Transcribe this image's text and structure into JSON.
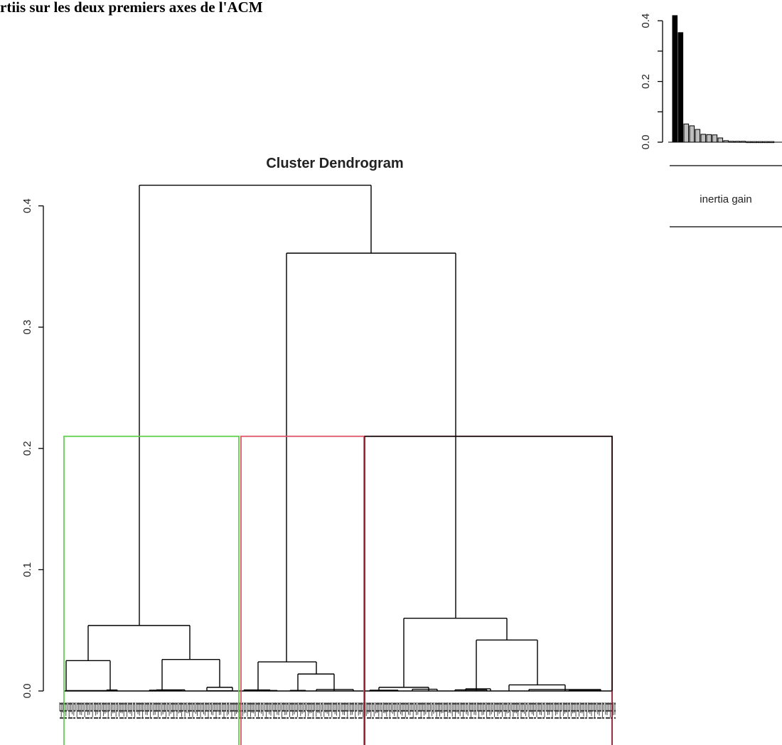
{
  "page_heading": "rtiis sur les deux premiers axes de l'ACM",
  "chart_data": [
    {
      "type": "dendrogram",
      "title": "Cluster Dendrogram",
      "xlabel": "",
      "ylabel": "",
      "ylim": [
        0,
        0.43
      ],
      "y_ticks": [
        "0.0",
        "0.1",
        "0.2",
        "0.3",
        "0.4"
      ],
      "cut_height": 0.21,
      "cluster_colors": [
        "#61D04F",
        "#DF536B",
        "#8B1A2A"
      ],
      "merges": [
        {
          "id": "root",
          "height": 0.417,
          "children": [
            "g",
            "r"
          ]
        },
        {
          "id": "r",
          "height": 0.361,
          "children": [
            "p",
            "q"
          ]
        },
        {
          "id": "g",
          "height": 0.054,
          "children": [
            "g1",
            "g2"
          ]
        },
        {
          "id": "q",
          "height": 0.06,
          "children": [
            "q1",
            "q2"
          ]
        },
        {
          "id": "q2",
          "height": 0.042,
          "children": [
            "q21",
            "q22"
          ]
        },
        {
          "id": "g2",
          "height": 0.026,
          "children": [
            "g21",
            "g22"
          ]
        },
        {
          "id": "g1",
          "height": 0.025,
          "children": [
            "g11",
            "g12"
          ]
        },
        {
          "id": "p",
          "height": 0.024,
          "children": [
            "p1",
            "p2"
          ]
        },
        {
          "id": "p2",
          "height": 0.014,
          "children": [
            "p21",
            "p22"
          ]
        },
        {
          "id": "q22",
          "height": 0.005,
          "children": [
            "q221",
            "q222"
          ]
        },
        {
          "id": "q1",
          "height": 0.003,
          "children": [
            "q11",
            "q12"
          ]
        },
        {
          "id": "g22",
          "height": 0.003,
          "children": [
            "g221",
            "g222"
          ]
        }
      ]
    },
    {
      "type": "bar",
      "title": "",
      "legend_label": "inertia gain",
      "ylim": [
        0,
        0.42
      ],
      "y_ticks": [
        "0.0",
        "0.2",
        "0.4"
      ],
      "values": [
        0.417,
        0.361,
        0.06,
        0.054,
        0.042,
        0.026,
        0.025,
        0.024,
        0.014,
        0.005,
        0.003,
        0.003,
        0.003,
        0.002,
        0.002,
        0.002,
        0.002,
        0.002
      ],
      "highlighted_count": 2,
      "highlight_color": "#000000",
      "other_color": "#BEBEBE"
    }
  ]
}
